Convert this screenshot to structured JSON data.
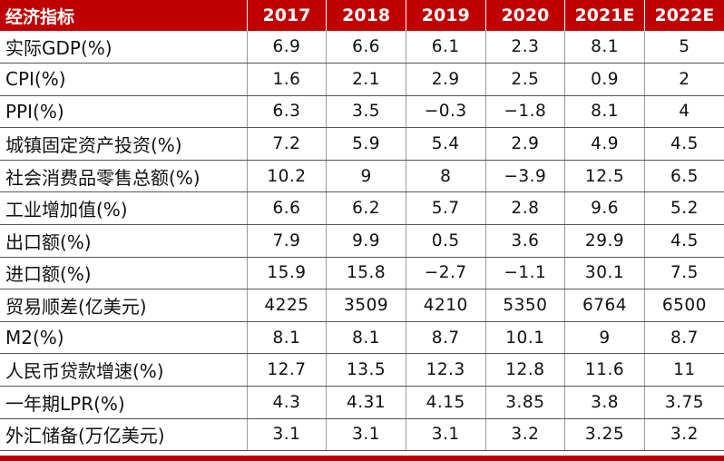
{
  "table": {
    "header": [
      "经济指标",
      "2017",
      "2018",
      "2019",
      "2020",
      "2021E",
      "2022E"
    ],
    "rows": [
      [
        "实际GDP(%)",
        "6.9",
        "6.6",
        "6.1",
        "2.3",
        "8.1",
        "5"
      ],
      [
        "CPI(%)",
        "1.6",
        "2.1",
        "2.9",
        "2.5",
        "0.9",
        "2"
      ],
      [
        "PPI(%)",
        "6.3",
        "3.5",
        "−0.3",
        "−1.8",
        "8.1",
        "4"
      ],
      [
        "城镇固定资产投资(%)",
        "7.2",
        "5.9",
        "5.4",
        "2.9",
        "4.9",
        "4.5"
      ],
      [
        "社会消费品零售总额(%)",
        "10.2",
        "9",
        "8",
        "−3.9",
        "12.5",
        "6.5"
      ],
      [
        "工业增加值(%)",
        "6.6",
        "6.2",
        "5.7",
        "2.8",
        "9.6",
        "5.2"
      ],
      [
        "出口额(%)",
        "7.9",
        "9.9",
        "0.5",
        "3.6",
        "29.9",
        "4.5"
      ],
      [
        "进口额(%)",
        "15.9",
        "15.8",
        "−2.7",
        "−1.1",
        "30.1",
        "7.5"
      ],
      [
        "贸易顺差(亿美元)",
        "4225",
        "3509",
        "4210",
        "5350",
        "6764",
        "6500"
      ],
      [
        "M2(%)",
        "8.1",
        "8.1",
        "8.7",
        "10.1",
        "9",
        "8.7"
      ],
      [
        "人民币贷款增速(%)",
        "12.7",
        "13.5",
        "12.3",
        "12.8",
        "11.6",
        "11"
      ],
      [
        "一年期LPR(%)",
        "4.3",
        "4.31",
        "4.15",
        "3.85",
        "3.8",
        "3.75"
      ],
      [
        "外汇储备(万亿美元)",
        "3.1",
        "3.1",
        "3.1",
        "3.2",
        "3.25",
        "3.2"
      ]
    ]
  },
  "colors": {
    "header_bg": "#c00000",
    "header_text": "#ffffff",
    "bottom_bar": "#c00000"
  }
}
